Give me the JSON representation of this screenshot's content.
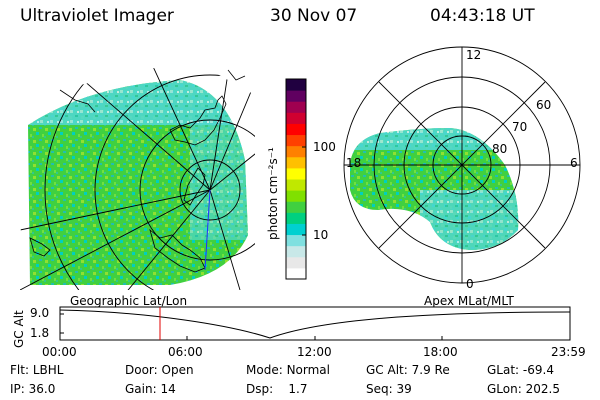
{
  "header": {
    "instrument": "Ultraviolet Imager",
    "date": "30 Nov 07",
    "time": "04:43:18 UT"
  },
  "left_panel": {
    "label": "Geographic Lat/Lon"
  },
  "right_panel": {
    "label": "Apex MLat/MLT",
    "mlt_labels": [
      "12",
      "18",
      "6",
      "0"
    ],
    "mlat_labels": [
      "60",
      "70",
      "80"
    ]
  },
  "colorbar": {
    "unit_label": "photon cm⁻²s⁻¹",
    "tick_labels": [
      "100",
      "10"
    ],
    "colors": [
      "#ffffff",
      "#e8e8e8",
      "#c8e8e8",
      "#80e0e0",
      "#00d0d0",
      "#00d080",
      "#40d040",
      "#80e000",
      "#c0e800",
      "#ffff00",
      "#ffc000",
      "#ff8000",
      "#ff4000",
      "#ff0000",
      "#d00030",
      "#a00050",
      "#600060",
      "#200040"
    ]
  },
  "alt_plot": {
    "ylabel": "GC Alt",
    "y_ticks": [
      "9.0",
      "1.8"
    ],
    "x_ticks": [
      "00:00",
      "06:00",
      "12:00",
      "18:00",
      "23:59"
    ]
  },
  "info": {
    "row1": [
      {
        "label": "Flt:",
        "value": "LBHL"
      },
      {
        "label": "Door:",
        "value": "Open"
      },
      {
        "label": "Mode:",
        "value": "Normal"
      },
      {
        "label": "GC Alt:",
        "value": "7.9 Re"
      },
      {
        "label": "GLat:",
        "value": "-69.4"
      }
    ],
    "row2": [
      {
        "label": "IP:",
        "value": "36.0"
      },
      {
        "label": "Gain:",
        "value": "14"
      },
      {
        "label": "Dsp:",
        "value": "1.7"
      },
      {
        "label": "Seq:",
        "value": "39"
      },
      {
        "label": "GLon:",
        "value": "202.5"
      }
    ]
  }
}
